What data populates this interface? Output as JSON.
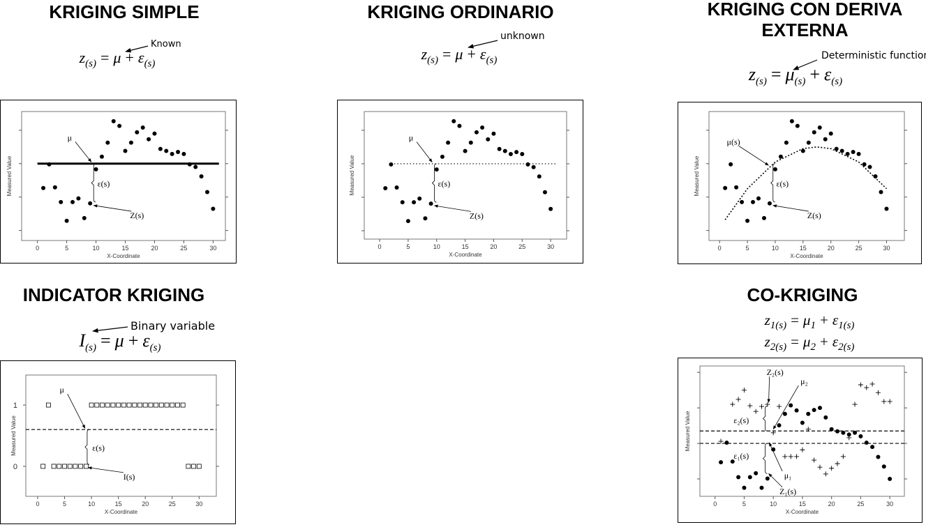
{
  "panels": [
    {
      "title": "KRIGING SIMPLE",
      "formulas": [
        [
          "z",
          "(s)",
          "=",
          "μ",
          "+",
          "ε",
          "(s)"
        ]
      ],
      "note": "Known",
      "plot": {
        "type": "scatter",
        "xlabel": "X-Coordinate",
        "ylabel": "Measured Value",
        "xlim": [
          -2.7,
          32.1
        ],
        "xticks": [
          0,
          5,
          10,
          15,
          20,
          25,
          30
        ],
        "ylim": [
          -2.3,
          1.56
        ],
        "yticks": [
          -2,
          -1,
          0,
          1
        ],
        "ytick_labels": false,
        "hlines": [
          {
            "value": 0,
            "style": "solid"
          }
        ],
        "series": [
          {
            "marker": "dot",
            "x": [
              1,
              2,
              3,
              4,
              5,
              6,
              7,
              8,
              9,
              10,
              11,
              12,
              13,
              14,
              15,
              16,
              17,
              18,
              19,
              20,
              21,
              22,
              23,
              24,
              25,
              26,
              27,
              28,
              29,
              30
            ],
            "y": [
              -0.73,
              -0.02,
              -0.71,
              -1.15,
              -1.71,
              -1.15,
              -1.04,
              -1.63,
              -1.19,
              -0.17,
              0.21,
              0.63,
              1.27,
              1.13,
              0.38,
              0.63,
              0.94,
              1.08,
              0.73,
              0.9,
              0.44,
              0.38,
              0.29,
              0.35,
              0.29,
              -0.02,
              -0.1,
              -0.38,
              -0.85,
              -1.35
            ]
          }
        ],
        "annotations": [
          "μ",
          "ε(s)",
          "Z(s)"
        ]
      }
    },
    {
      "title": "KRIGING ORDINARIO",
      "formulas": [
        [
          "z",
          "(s)",
          "=",
          "μ",
          "+",
          "ε",
          "(s)"
        ]
      ],
      "note": "unknown",
      "plot": {
        "type": "scatter",
        "xlabel": "X-Coordinate",
        "ylabel": "Measured Value",
        "xlim": [
          -2.7,
          32.8
        ],
        "xticks": [
          0,
          5,
          10,
          15,
          20,
          25,
          30
        ],
        "ylim": [
          -2.25,
          1.56
        ],
        "yticks": [
          -2,
          -1,
          0,
          1
        ],
        "ytick_labels": false,
        "hlines": [
          {
            "value": 0,
            "style": "dotted"
          }
        ],
        "series": [
          {
            "marker": "dot",
            "x": [
              1,
              2,
              3,
              4,
              5,
              6,
              7,
              8,
              9,
              10,
              11,
              12,
              13,
              14,
              15,
              16,
              17,
              18,
              19,
              20,
              21,
              22,
              23,
              24,
              25,
              26,
              27,
              28,
              29,
              30
            ],
            "y": [
              -0.73,
              -0.02,
              -0.71,
              -1.15,
              -1.71,
              -1.15,
              -1.04,
              -1.63,
              -1.19,
              -0.17,
              0.21,
              0.63,
              1.27,
              1.13,
              0.38,
              0.63,
              0.94,
              1.08,
              0.73,
              0.9,
              0.44,
              0.38,
              0.29,
              0.35,
              0.29,
              -0.02,
              -0.1,
              -0.38,
              -0.85,
              -1.35
            ]
          }
        ],
        "annotations": [
          "μ",
          "ε(s)",
          "Z(s)"
        ]
      }
    },
    {
      "title": "KRIGING CON DERIVA EXTERNA",
      "formulas": [
        [
          "z",
          "(s)",
          "=",
          "μ",
          "(s)",
          "+",
          "ε",
          "(s)"
        ]
      ],
      "note": "Deterministic function",
      "plot": {
        "type": "scatter",
        "xlabel": "X-Coordinate",
        "ylabel": "Measured Value",
        "xlim": [
          -1.9,
          33.2
        ],
        "xticks": [
          0,
          5,
          10,
          15,
          20,
          25,
          30
        ],
        "ylim": [
          -2.3,
          1.56
        ],
        "yticks": [
          -2,
          -1,
          0,
          1
        ],
        "ytick_labels": false,
        "curve": {
          "x": [
            1,
            5,
            10,
            15,
            17.5,
            20,
            25,
            30
          ],
          "y": [
            -1.68,
            -0.75,
            0.05,
            0.45,
            0.5,
            0.45,
            0.05,
            -0.75
          ]
        },
        "series": [
          {
            "marker": "dot",
            "x": [
              1,
              2,
              3,
              4,
              5,
              6,
              7,
              8,
              9,
              10,
              11,
              12,
              13,
              14,
              15,
              16,
              17,
              18,
              19,
              20,
              21,
              22,
              23,
              24,
              25,
              26,
              27,
              28,
              29,
              30
            ],
            "y": [
              -0.73,
              -0.02,
              -0.71,
              -1.15,
              -1.71,
              -1.15,
              -1.04,
              -1.63,
              -1.19,
              -0.17,
              0.21,
              0.63,
              1.27,
              1.13,
              0.38,
              0.63,
              0.94,
              1.08,
              0.73,
              0.9,
              0.44,
              0.38,
              0.29,
              0.35,
              0.29,
              -0.02,
              -0.1,
              -0.38,
              -0.85,
              -1.35
            ]
          }
        ],
        "annotations": [
          "μ(s)",
          "ε(s)",
          "Z(s)"
        ]
      }
    },
    {
      "title": "INDICATOR KRIGING",
      "formulas": [
        [
          "I",
          "(s)",
          "=",
          "μ",
          "+",
          "ε",
          "(s)"
        ]
      ],
      "note": "Binary variable",
      "plot": {
        "type": "scatter",
        "xlabel": "X-Coordinate",
        "ylabel": "Measured Value",
        "xlim": [
          -2.2,
          33.2
        ],
        "xticks": [
          0,
          5,
          10,
          15,
          20,
          25,
          30
        ],
        "ylim": [
          -0.49,
          1.49
        ],
        "yticks": [
          0,
          1
        ],
        "ytick_labels": true,
        "hlines": [
          {
            "value": 0.6,
            "style": "dashed"
          }
        ],
        "series": [
          {
            "marker": "square",
            "x": [
              1,
              2,
              3,
              4,
              5,
              6,
              7,
              8,
              9,
              10,
              11,
              12,
              13,
              14,
              15,
              16,
              17,
              18,
              19,
              20,
              21,
              22,
              23,
              24,
              25,
              26,
              27,
              28,
              29,
              30
            ],
            "y": [
              0,
              1,
              0,
              0,
              0,
              0,
              0,
              0,
              0,
              1,
              1,
              1,
              1,
              1,
              1,
              1,
              1,
              1,
              1,
              1,
              1,
              1,
              1,
              1,
              1,
              1,
              1,
              0,
              0,
              0
            ]
          }
        ],
        "annotations": [
          "μ",
          "ε(s)",
          "I(s)"
        ]
      }
    },
    {
      "title": "CO-KRIGING",
      "formulas": [
        [
          "z",
          "1(s)",
          "=",
          "μ",
          "1",
          "+",
          "ε",
          "1(s)"
        ],
        [
          "z",
          "2(s)",
          "=",
          "μ",
          "2",
          "+",
          "ε",
          "2(s)"
        ]
      ],
      "plot": {
        "type": "scatter",
        "xlabel": "X-Coordinate",
        "ylabel": "Measured Value",
        "xlim": [
          -2.6,
          32.5
        ],
        "xticks": [
          0,
          5,
          10,
          15,
          20,
          25,
          30
        ],
        "ylim": [
          -1.49,
          2.18
        ],
        "yticks": [
          -1,
          0,
          1,
          2
        ],
        "ytick_labels": false,
        "hlines": [
          {
            "value": 0.35,
            "style": "dashed"
          },
          {
            "value": 0,
            "style": "dashed"
          }
        ],
        "series": [
          {
            "marker": "dot",
            "x": [
              1,
              2,
              3,
              4,
              5,
              6,
              7,
              8,
              9,
              10,
              11,
              12,
              13,
              14,
              15,
              16,
              17,
              18,
              19,
              20,
              21,
              22,
              23,
              24,
              25,
              26,
              27,
              28,
              29,
              30
            ],
            "y": [
              -0.53,
              0.02,
              -0.51,
              -0.95,
              -1.25,
              -0.95,
              -0.84,
              -1.25,
              -0.99,
              -0.17,
              0.51,
              0.83,
              1.07,
              0.93,
              0.58,
              0.83,
              0.94,
              1.0,
              0.73,
              0.4,
              0.34,
              0.3,
              0.25,
              0.3,
              0.2,
              0.02,
              -0.1,
              -0.38,
              -0.65,
              -1.0
            ]
          },
          {
            "marker": "plus",
            "x": [
              1,
              3,
              4,
              5,
              6,
              7,
              8,
              9,
              10,
              11,
              12,
              13,
              14,
              15,
              16,
              17,
              18,
              19,
              20,
              21,
              22,
              23,
              24,
              25,
              26,
              27,
              28,
              29,
              30
            ],
            "y": [
              0.06,
              1.1,
              1.24,
              1.5,
              1.06,
              0.9,
              1.04,
              1.1,
              0.3,
              1.04,
              -0.37,
              -0.37,
              -0.37,
              -0.18,
              0.4,
              -0.47,
              -0.67,
              -0.86,
              -0.7,
              -0.57,
              -0.37,
              0.16,
              1.1,
              1.65,
              1.57,
              1.67,
              1.43,
              1.18,
              1.18
            ]
          }
        ],
        "annotations": [
          "Z₂(s)",
          "μ₂",
          "ε₂(s)",
          "ε₁(s)",
          "μ₁",
          "Z₁(s)"
        ]
      }
    }
  ]
}
